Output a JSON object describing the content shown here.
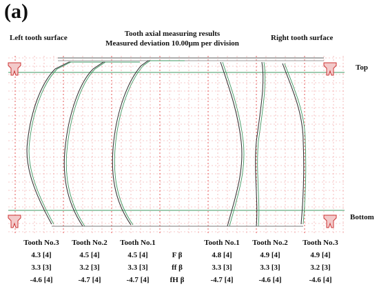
{
  "panel_label": "(a)",
  "title_lines": [
    "Tooth axial measuring results",
    "Measured deviation 10.00μm per division"
  ],
  "left_surface": "Left tooth surface",
  "right_surface": "Right tooth surface",
  "top_label": "Top",
  "bottom_label": "Bottom",
  "colors": {
    "grid": "#e23a3a",
    "measured": "#3a3a3a",
    "nominal": "#3f9a63",
    "rule": "#7a7a7a"
  },
  "chart_data": {
    "type": "line",
    "grid": true,
    "columns": [
      {
        "name": "Tooth No.3",
        "side": "left",
        "F_beta": "4.3 [4]",
        "ff_beta": "3.3 [3]",
        "fH_beta": "-4.6 [4]"
      },
      {
        "name": "Tooth No.2",
        "side": "left",
        "F_beta": "4.5 [4]",
        "ff_beta": "3.2 [3]",
        "fH_beta": "-4.7 [4]"
      },
      {
        "name": "Tooth No.1",
        "side": "left",
        "F_beta": "4.5 [4]",
        "ff_beta": "3.3 [3]",
        "fH_beta": "-4.7 [4]"
      },
      {
        "name": "Tooth No.1",
        "side": "right",
        "F_beta": "4.8 [4]",
        "ff_beta": "3.3 [3]",
        "fH_beta": "-4.7 [4]"
      },
      {
        "name": "Tooth No.2",
        "side": "right",
        "F_beta": "4.9 [4]",
        "ff_beta": "3.3 [3]",
        "fH_beta": "-4.6 [4]"
      },
      {
        "name": "Tooth No.3",
        "side": "right",
        "F_beta": "4.9 [4]",
        "ff_beta": "3.2 [3]",
        "fH_beta": "-4.6 [4]"
      }
    ],
    "metrics": [
      "F β",
      "ff β",
      "fH β"
    ]
  }
}
